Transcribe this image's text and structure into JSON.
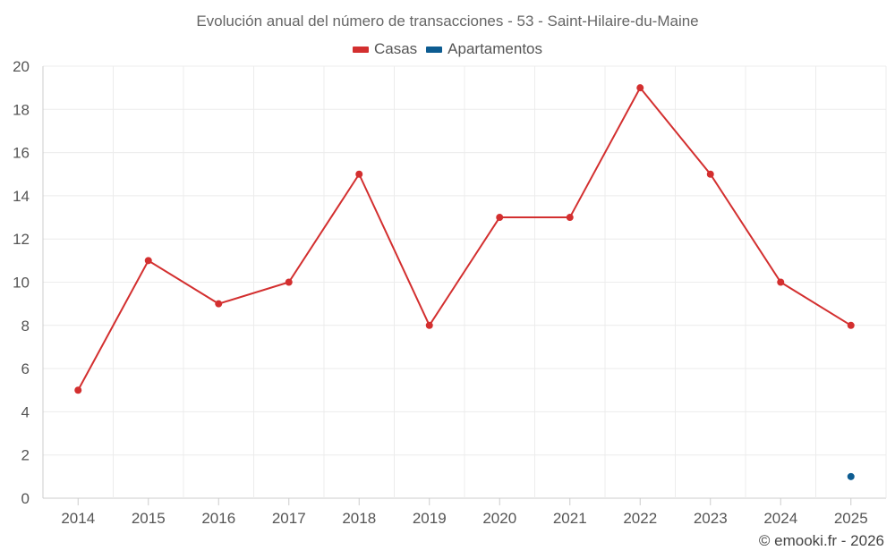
{
  "chart_data": {
    "type": "line",
    "title": "Evolución anual del número de transacciones - 53 - Saint-Hilaire-du-Maine",
    "categories": [
      "2014",
      "2015",
      "2016",
      "2017",
      "2018",
      "2019",
      "2020",
      "2021",
      "2022",
      "2023",
      "2024",
      "2025"
    ],
    "series": [
      {
        "name": "Casas",
        "color": "#d32f2f",
        "values": [
          5,
          11,
          9,
          10,
          15,
          8,
          13,
          13,
          19,
          15,
          10,
          8
        ]
      },
      {
        "name": "Apartamentos",
        "color": "#0d5c91",
        "values": [
          null,
          null,
          null,
          null,
          null,
          null,
          null,
          null,
          null,
          null,
          null,
          1
        ]
      }
    ],
    "ylim": [
      0,
      20
    ],
    "yticks": [
      0,
      2,
      4,
      6,
      8,
      10,
      12,
      14,
      16,
      18,
      20
    ],
    "legend_position": "top-center",
    "grid": true,
    "xlabel": "",
    "ylabel": ""
  },
  "credit": "© emooki.fr - 2026"
}
